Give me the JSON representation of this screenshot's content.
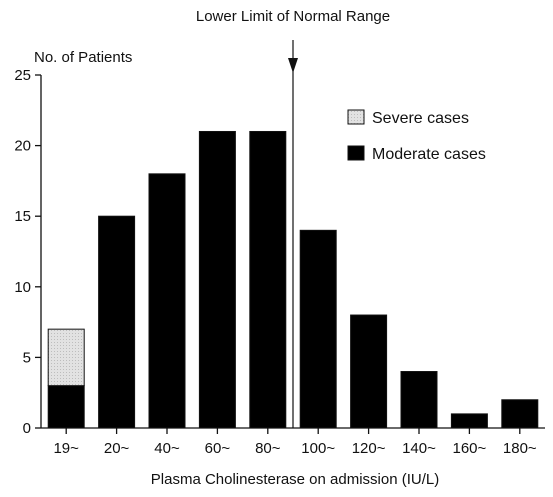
{
  "chart_data": {
    "type": "bar",
    "stacked": true,
    "title": "",
    "ylabel": "No. of Patients",
    "xlabel": "Plasma Cholinesterase on admission (IU/L)",
    "categories": [
      "19~",
      "20~",
      "40~",
      "60~",
      "80~",
      "100~",
      "120~",
      "140~",
      "160~",
      "180~"
    ],
    "series": [
      {
        "name": "Moderate cases",
        "color": "#000000",
        "values": [
          3,
          15,
          18,
          21,
          21,
          14,
          8,
          4,
          1,
          2
        ]
      },
      {
        "name": "Severe cases",
        "color": "#dcdcdc",
        "values": [
          4,
          0,
          0,
          0,
          0,
          0,
          0,
          0,
          0,
          0
        ]
      }
    ],
    "ylim": [
      0,
      25
    ],
    "yticks": [
      0,
      5,
      10,
      15,
      20,
      25
    ],
    "grid": false,
    "legend_position": "top-right",
    "annotation": {
      "text": "Lower Limit of Normal Range",
      "between_categories": [
        "80~",
        "100~"
      ]
    }
  }
}
